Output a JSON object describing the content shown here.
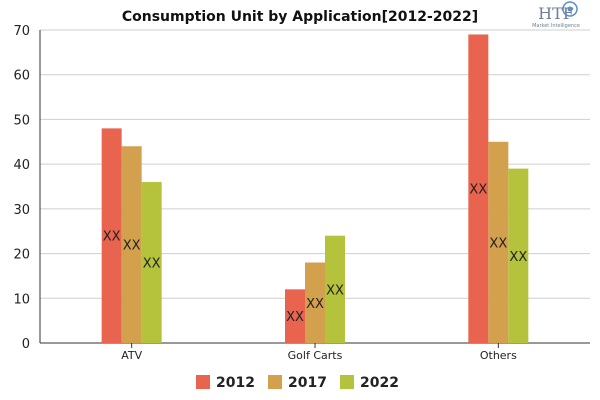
{
  "colors": {
    "2012": "#e8644e",
    "2017": "#d3a04e",
    "2022": "#b5c23c"
  },
  "logo": {
    "mark": "HTF",
    "subtitle": "Market Intelligence"
  },
  "chart_data": {
    "type": "bar",
    "title": "Consumption Unit by  Application[2012-2022]",
    "xlabel": "",
    "ylabel": "",
    "ylim": [
      0,
      70
    ],
    "yticks": [
      0,
      10,
      20,
      30,
      40,
      50,
      60,
      70
    ],
    "categories": [
      "ATV",
      "Golf Carts",
      "Others"
    ],
    "series": [
      {
        "name": "2012",
        "values": [
          48,
          12,
          69
        ],
        "labels": [
          "XX",
          "XX",
          "XX"
        ]
      },
      {
        "name": "2017",
        "values": [
          44,
          18,
          45
        ],
        "labels": [
          "XX",
          "XX",
          "XX"
        ]
      },
      {
        "name": "2022",
        "values": [
          36,
          24,
          39
        ],
        "labels": [
          "XX",
          "XX",
          "XX"
        ]
      }
    ],
    "grid": "horizontal",
    "legend": "bottom-center"
  }
}
